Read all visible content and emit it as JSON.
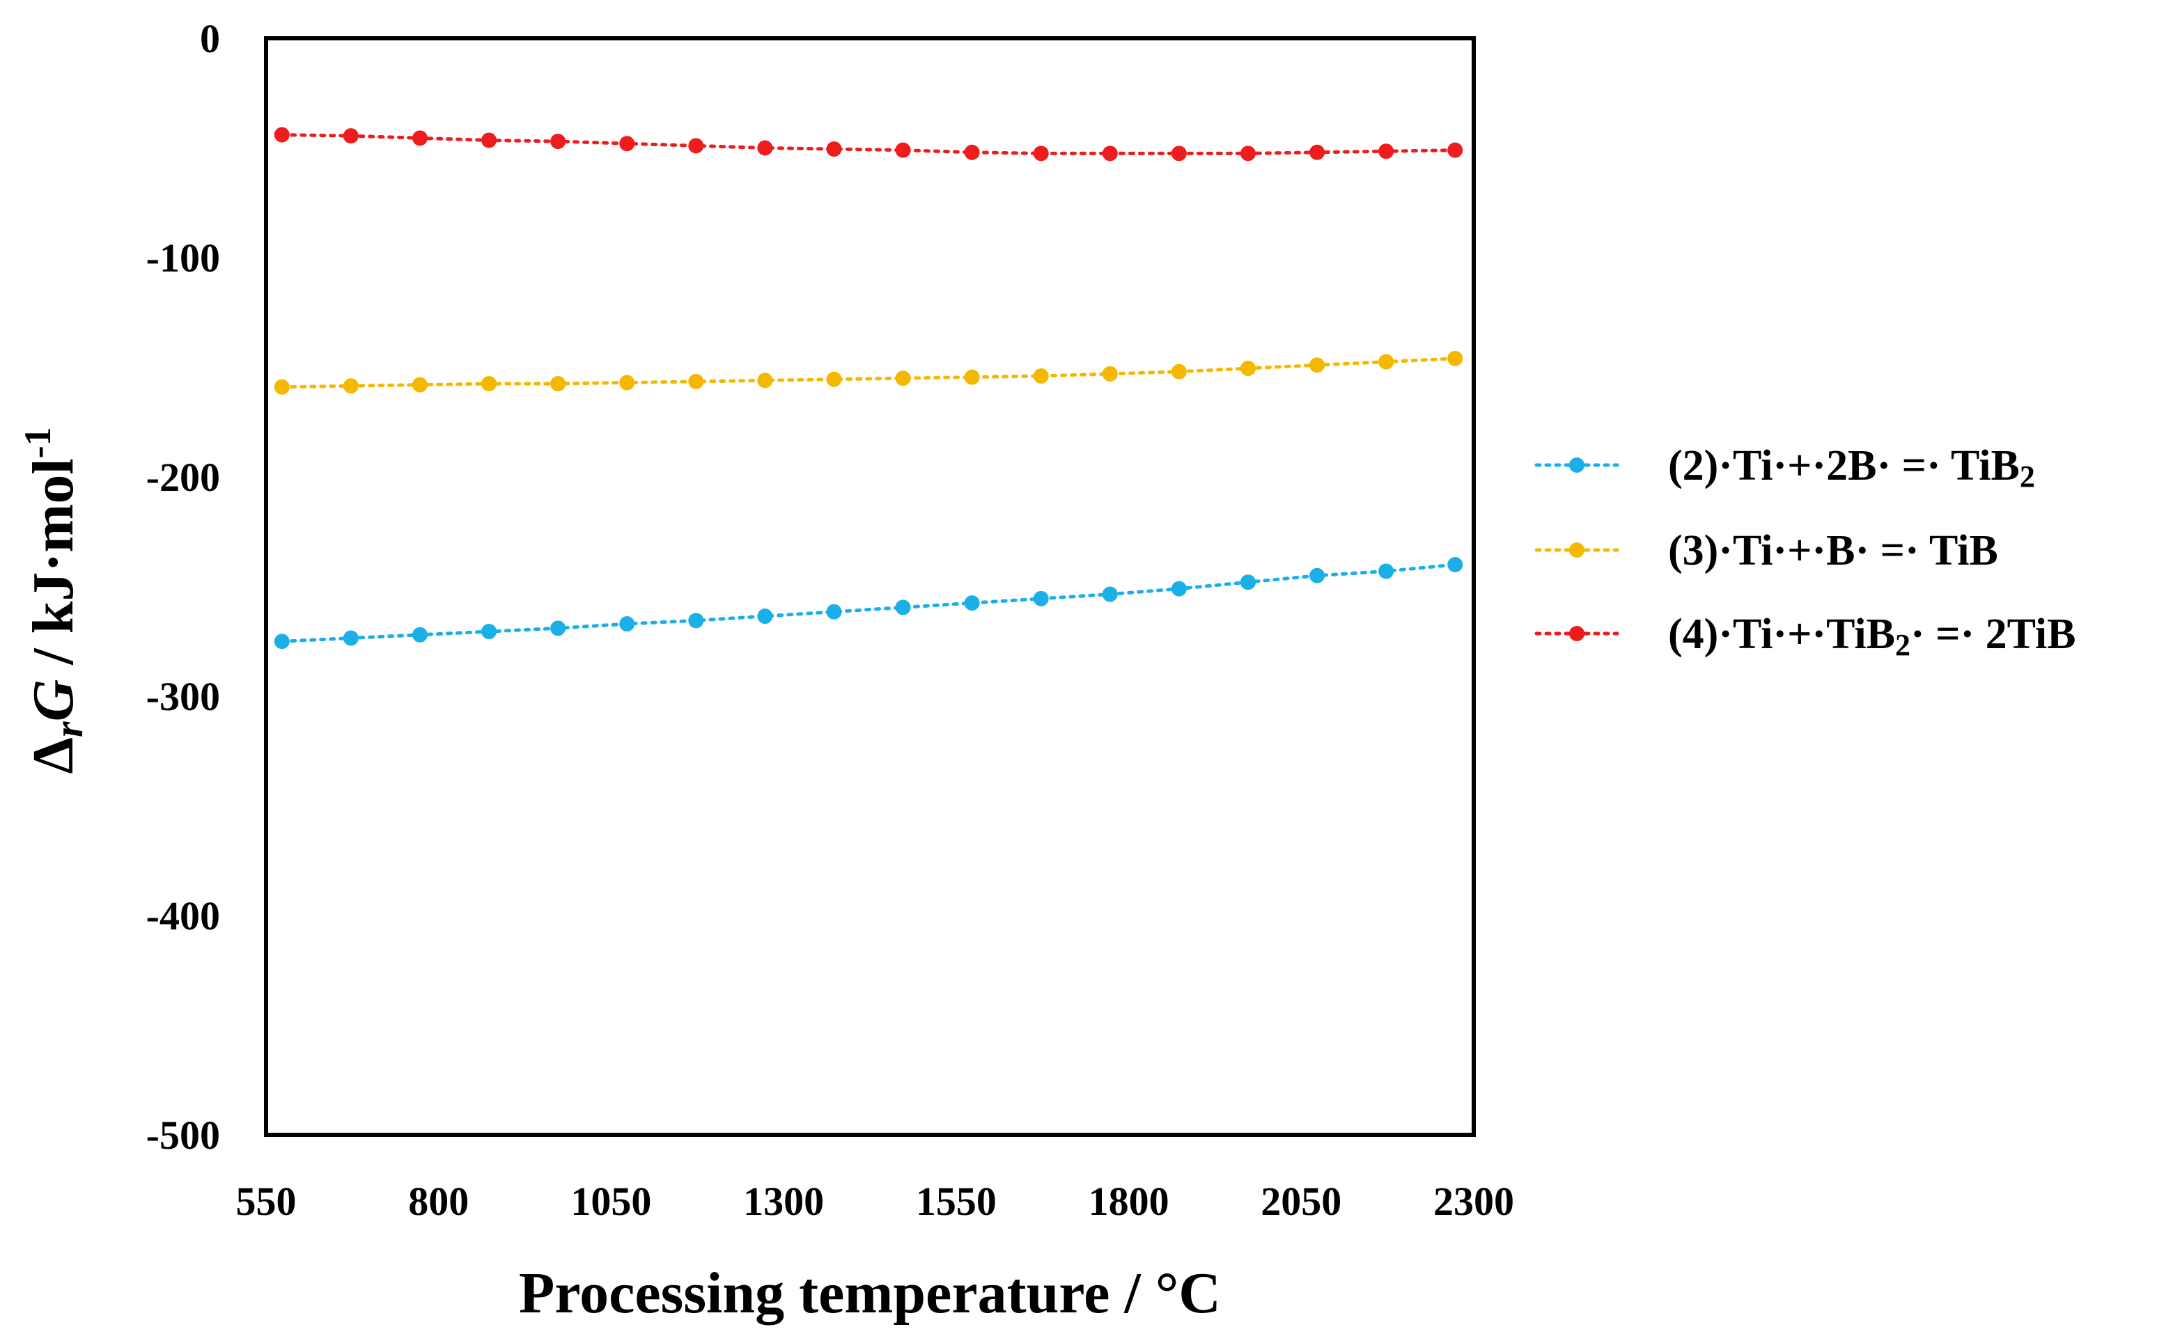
{
  "chart_data": {
    "type": "line",
    "title": "",
    "xlabel": "Processing temperature / °C",
    "ylabel": {
      "delta": "Δ",
      "subscript": "r",
      "variable": "G",
      "rest": " / kJ·mol",
      "exponent": "-1"
    },
    "xlim": [
      550,
      2300
    ],
    "ylim": [
      -500,
      0
    ],
    "x_ticks": [
      550,
      800,
      1050,
      1300,
      1550,
      1800,
      2050,
      2300
    ],
    "x_tick_labels": [
      "550",
      "800",
      "1050",
      "1300",
      "1550",
      "1800",
      "2050",
      "2300"
    ],
    "y_ticks": [
      0,
      -100,
      -200,
      -300,
      -400,
      -500
    ],
    "y_tick_labels": [
      "0",
      "-100",
      "-200",
      "-300",
      "-400",
      "-500"
    ],
    "grid": false,
    "legend_position": "right",
    "x": [
      573,
      673,
      773,
      873,
      973,
      1073,
      1173,
      1273,
      1373,
      1473,
      1573,
      1673,
      1773,
      1873,
      1973,
      2073,
      2173,
      2273
    ],
    "series": [
      {
        "name": "(2)·Ti·+·2B· =· TiB₂",
        "legend": {
          "main": "(2)·Ti·+·2B· =· TiB",
          "sub": "2",
          "tail": ""
        },
        "color": "#1aafe6",
        "values": [
          -275,
          -273.5,
          -272,
          -270.5,
          -269,
          -267,
          -265.5,
          -263.5,
          -261.5,
          -259.5,
          -257.5,
          -255.5,
          -253.5,
          -251,
          -248,
          -245,
          -243,
          -240
        ]
      },
      {
        "name": "(3)·Ti·+·B· =· TiB",
        "legend": {
          "main": "(3)·Ti·+·B· =· TiB",
          "sub": "",
          "tail": ""
        },
        "color": "#f5b800",
        "values": [
          -159,
          -158.5,
          -158,
          -157.5,
          -157.5,
          -157,
          -156.5,
          -156,
          -155.5,
          -155,
          -154.5,
          -154,
          -153,
          -152,
          -150.5,
          -149,
          -147.5,
          -146
        ]
      },
      {
        "name": "(4)·Ti·+·TiB₂· =· 2TiB",
        "legend": {
          "main": "(4)·Ti·+·TiB",
          "sub": "2",
          "tail": "· =· 2TiB"
        },
        "color": "#ee1c1c",
        "values": [
          -44,
          -44.5,
          -45.5,
          -46.5,
          -47,
          -48,
          -49,
          -50,
          -50.5,
          -51,
          -52,
          -52.5,
          -52.5,
          -52.5,
          -52.5,
          -52,
          -51.5,
          -51
        ]
      }
    ]
  }
}
